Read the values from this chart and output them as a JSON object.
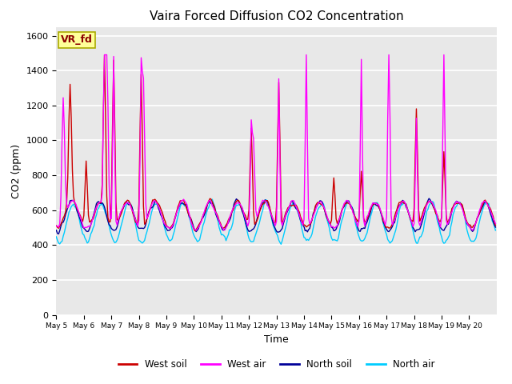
{
  "title": "Vaira Forced Diffusion CO2 Concentration",
  "xlabel": "Time",
  "ylabel": "CO2 (ppm)",
  "xlim": [
    0,
    384
  ],
  "ylim": [
    0,
    1650
  ],
  "yticks": [
    0,
    200,
    400,
    600,
    800,
    1000,
    1200,
    1400,
    1600
  ],
  "xtick_labels": [
    "May 5",
    "May 6",
    "May 7",
    "May 8",
    "May 9",
    "May 10",
    "May 11",
    "May 12",
    "May 13",
    "May 14",
    "May 15",
    "May 16",
    "May 17",
    "May 18",
    "May 19",
    "May 20"
  ],
  "xtick_positions": [
    0,
    24,
    48,
    72,
    96,
    120,
    144,
    168,
    192,
    216,
    240,
    264,
    288,
    312,
    336,
    360
  ],
  "colors": {
    "west_soil": "#cc0000",
    "west_air": "#ff00ff",
    "north_soil": "#000099",
    "north_air": "#00ccff"
  },
  "background_color": "#e8e8e8",
  "annotation_text": "VR_fd",
  "annotation_color": "#8b0000",
  "annotation_bg": "#ffff99",
  "annotation_border": "#aaaa00"
}
